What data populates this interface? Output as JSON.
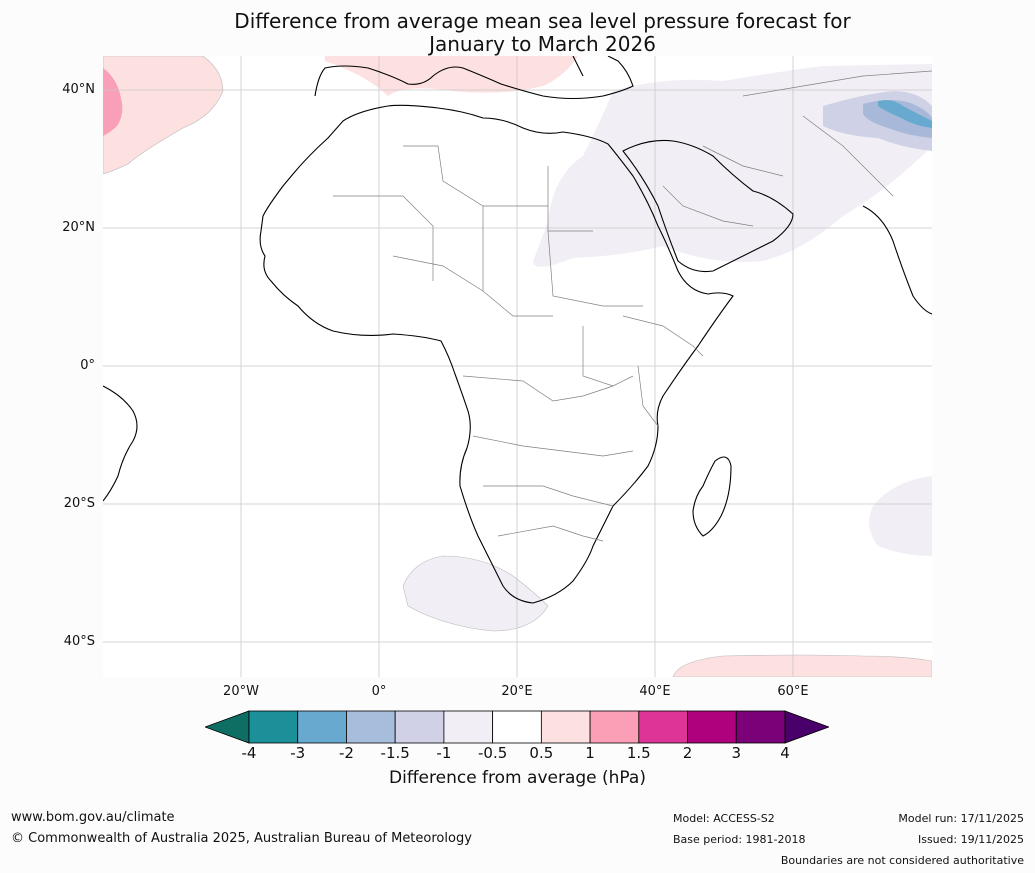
{
  "title_line1": "Difference from average mean sea level pressure forecast for",
  "title_line2": "January to March 2026",
  "map": {
    "lat_labels": [
      "40°N",
      "20°N",
      "0°",
      "20°S",
      "40°S"
    ],
    "lon_labels": [
      "20°W",
      "0°",
      "20°E",
      "40°E",
      "60°E"
    ],
    "colors": {
      "ocean": "#ffffff",
      "land_outline": "#000000",
      "border": "#808080",
      "grid": "#c8c8c8",
      "pos_05_1": "#fde0e0",
      "pos_1_15": "#f9a0b8",
      "neg_05_1": "#f2eef5",
      "neg_1_15": "#cfd2e6",
      "neg_15_2": "#a8b8d8",
      "neg_2_3": "#67a9cf"
    }
  },
  "colorbar": {
    "ticks": [
      "-4",
      "-3",
      "-2",
      "-1.5",
      "-1",
      "-0.5",
      "0.5",
      "1",
      "1.5",
      "2",
      "3",
      "4"
    ],
    "colors": [
      "#0e6e64",
      "#1c9099",
      "#67a9cf",
      "#a6bddb",
      "#d0d1e6",
      "#f2eef5",
      "#ffffff",
      "#fde0e0",
      "#fa9fb5",
      "#dd3497",
      "#ae017e",
      "#7a0177",
      "#49006a"
    ],
    "label": "Difference from average (hPa)"
  },
  "footer": {
    "website": "www.bom.gov.au/climate",
    "copyright": "© Commonwealth of Australia 2025, Australian Bureau of Meteorology",
    "model": "Model: ACCESS-S2",
    "base_period": "Base period: 1981-2018",
    "model_run": "Model run: 17/11/2025",
    "issued": "Issued: 19/11/2025",
    "disclaimer": "Boundaries are not considered authoritative"
  }
}
